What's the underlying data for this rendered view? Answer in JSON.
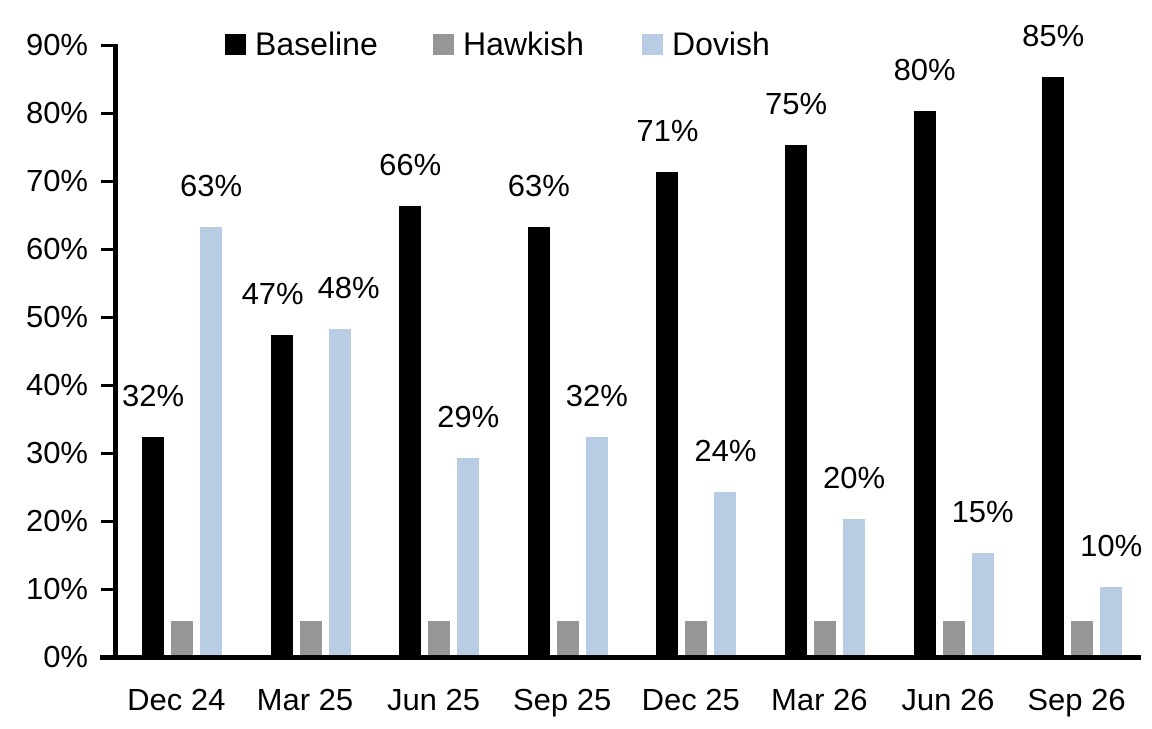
{
  "chart_data": {
    "type": "bar",
    "title": "",
    "xlabel": "",
    "ylabel": "",
    "categories": [
      "Dec 24",
      "Mar 25",
      "Jun 25",
      "Sep 25",
      "Dec 25",
      "Mar 26",
      "Jun 26",
      "Sep 26"
    ],
    "series": [
      {
        "name": "Baseline",
        "color": "#000000",
        "values": [
          32,
          47,
          66,
          63,
          71,
          75,
          80,
          85
        ],
        "data_labels": true
      },
      {
        "name": "Hawkish",
        "color": "#969696",
        "values": [
          5,
          5,
          5,
          5,
          5,
          5,
          5,
          5
        ],
        "data_labels": false
      },
      {
        "name": "Dovish",
        "color": "#b8cce4",
        "values": [
          63,
          48,
          29,
          32,
          24,
          20,
          15,
          10
        ],
        "data_labels": true
      }
    ],
    "label_format": "percent",
    "ylim": [
      0,
      90
    ],
    "ytick_step": 10,
    "ytick_labels": [
      "0%",
      "10%",
      "20%",
      "30%",
      "40%",
      "50%",
      "60%",
      "70%",
      "80%",
      "90%"
    ],
    "grid": false,
    "legend_position": "top",
    "colors": {
      "background": "#ffffff",
      "axis": "#000000",
      "text": "#000000"
    }
  }
}
